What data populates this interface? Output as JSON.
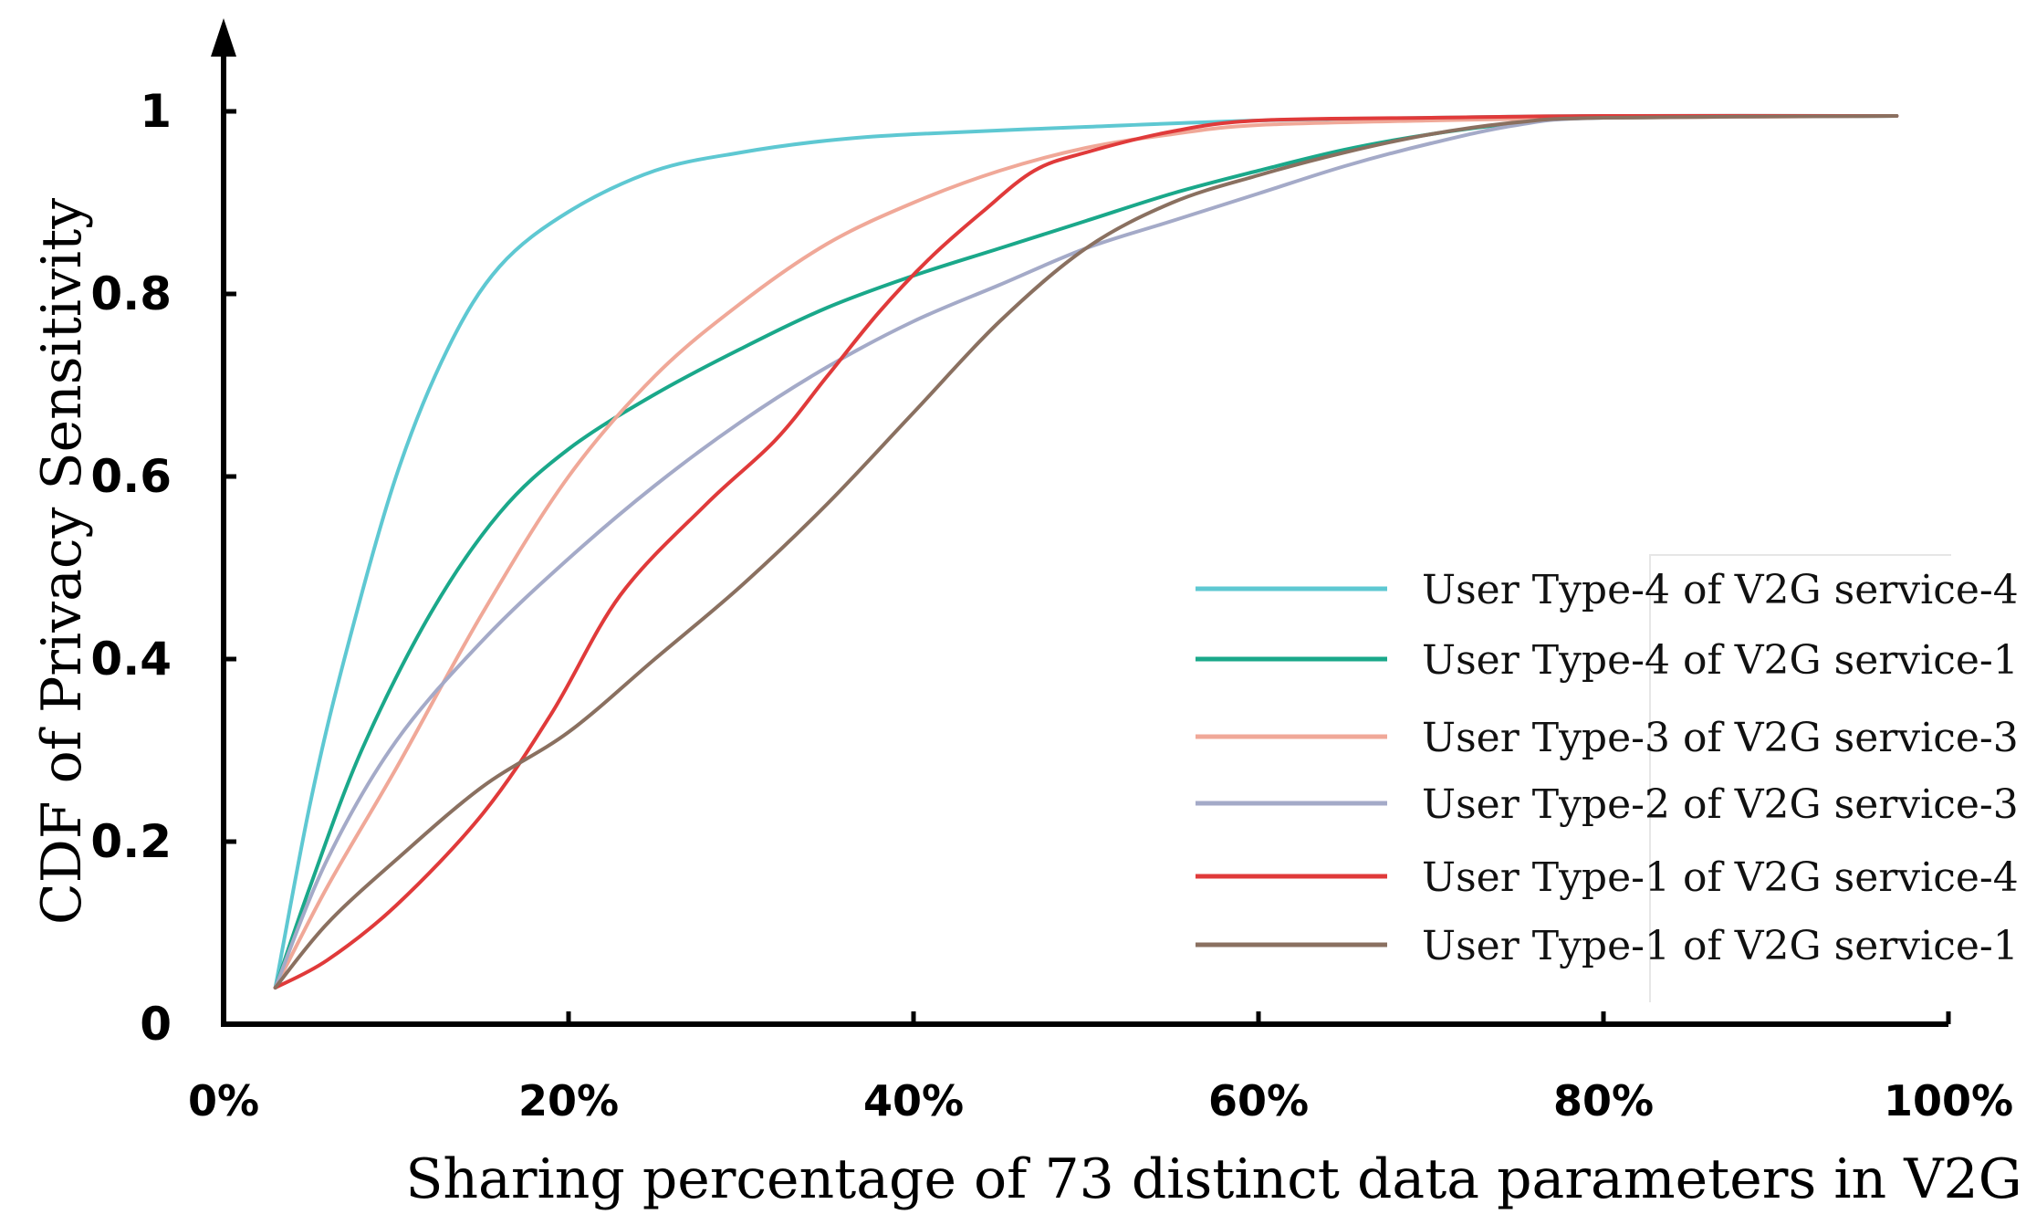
{
  "chart_data": {
    "type": "line",
    "title": "",
    "xlabel": "Sharing percentage of 73 distinct data parameters in V2G",
    "ylabel": "CDF of Privacy Sensitivity",
    "xlim": [
      0,
      100
    ],
    "ylim": [
      0,
      1.05
    ],
    "x_ticks": [
      0,
      20,
      40,
      60,
      80,
      100
    ],
    "x_tick_labels": [
      "0%",
      "20%",
      "40%",
      "60%",
      "80%",
      "100%"
    ],
    "y_ticks": [
      0,
      0.2,
      0.4,
      0.6,
      0.8,
      1
    ],
    "y_tick_labels": [
      "0",
      "0.2",
      "0.4",
      "0.6",
      "0.8",
      "1"
    ],
    "grid": false,
    "legend_position": "lower-right",
    "series": [
      {
        "name": "User Type-4 of V2G service-4",
        "color": "#5ec8d2",
        "x": [
          3,
          5,
          7,
          10,
          13,
          16,
          20,
          25,
          30,
          35,
          40,
          50,
          60,
          70,
          80,
          97
        ],
        "y": [
          0.04,
          0.24,
          0.4,
          0.6,
          0.74,
          0.83,
          0.89,
          0.935,
          0.955,
          0.968,
          0.975,
          0.983,
          0.99,
          0.993,
          0.995,
          0.995
        ]
      },
      {
        "name": "User Type-4 of V2G service-1",
        "color": "#1aa88a",
        "x": [
          3,
          5,
          8,
          12,
          16,
          20,
          25,
          30,
          35,
          40,
          45,
          50,
          55,
          60,
          65,
          70,
          75,
          80,
          97
        ],
        "y": [
          0.04,
          0.15,
          0.3,
          0.45,
          0.56,
          0.63,
          0.69,
          0.74,
          0.785,
          0.82,
          0.85,
          0.88,
          0.91,
          0.935,
          0.958,
          0.975,
          0.987,
          0.993,
          0.995
        ]
      },
      {
        "name": "User Type-3 of V2G service-3",
        "color": "#f0a898",
        "x": [
          3,
          6,
          10,
          15,
          20,
          25,
          30,
          35,
          40,
          45,
          50,
          55,
          60,
          70,
          80,
          97
        ],
        "y": [
          0.04,
          0.15,
          0.28,
          0.45,
          0.6,
          0.71,
          0.79,
          0.855,
          0.9,
          0.935,
          0.96,
          0.975,
          0.985,
          0.99,
          0.993,
          0.995
        ]
      },
      {
        "name": "User Type-2 of V2G service-3",
        "color": "#a4aac8",
        "x": [
          3,
          6,
          10,
          15,
          20,
          25,
          30,
          35,
          40,
          45,
          50,
          55,
          60,
          65,
          70,
          75,
          80,
          97
        ],
        "y": [
          0.04,
          0.18,
          0.31,
          0.42,
          0.51,
          0.59,
          0.66,
          0.72,
          0.77,
          0.81,
          0.85,
          0.88,
          0.91,
          0.94,
          0.965,
          0.985,
          0.993,
          0.995
        ]
      },
      {
        "name": "User Type-1 of V2G service-4",
        "color": "#e03a3a",
        "x": [
          3,
          6,
          10,
          15,
          19,
          23,
          28,
          32,
          35,
          38,
          41,
          44,
          47,
          50,
          55,
          60,
          70,
          80,
          97
        ],
        "y": [
          0.04,
          0.07,
          0.13,
          0.23,
          0.34,
          0.47,
          0.57,
          0.64,
          0.71,
          0.78,
          0.84,
          0.89,
          0.935,
          0.955,
          0.978,
          0.99,
          0.993,
          0.995,
          0.995
        ]
      },
      {
        "name": "User Type-1 of V2G service-1",
        "color": "#8a7060",
        "x": [
          3,
          6,
          10,
          15,
          20,
          25,
          30,
          35,
          40,
          45,
          50,
          55,
          60,
          65,
          70,
          75,
          80,
          97
        ],
        "y": [
          0.04,
          0.11,
          0.18,
          0.26,
          0.32,
          0.4,
          0.48,
          0.57,
          0.67,
          0.77,
          0.85,
          0.9,
          0.93,
          0.955,
          0.975,
          0.988,
          0.993,
          0.995
        ]
      }
    ]
  }
}
